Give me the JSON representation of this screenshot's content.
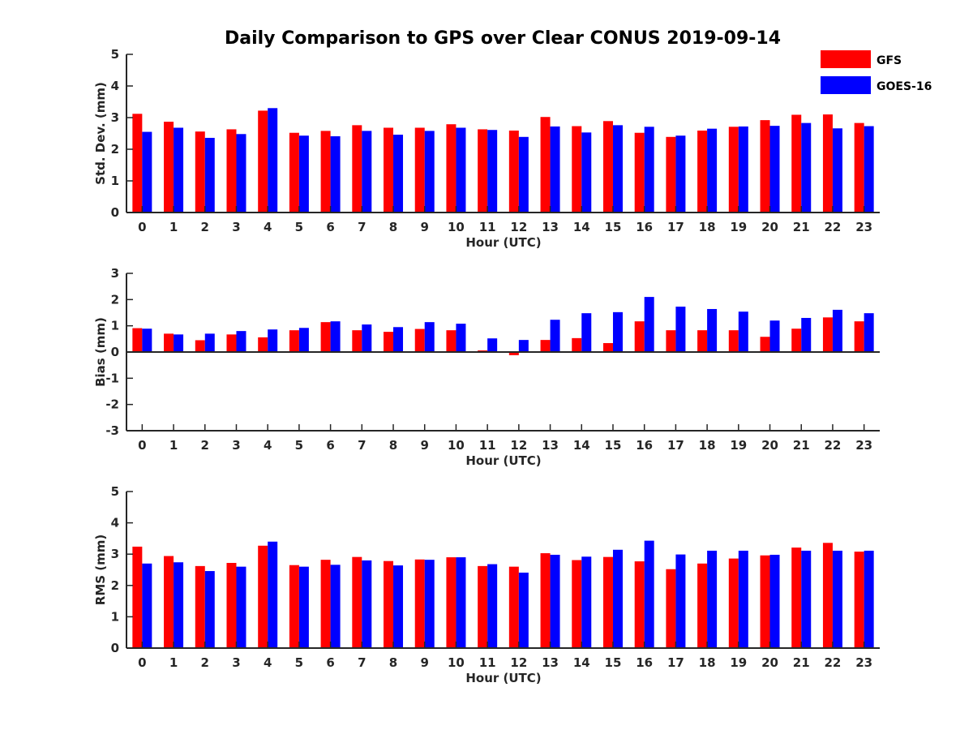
{
  "title": "Daily Comparison to GPS over Clear CONUS 2019-09-14",
  "legend": [
    {
      "label": "GFS",
      "color": "#ff0000"
    },
    {
      "label": "GOES-16",
      "color": "#0000ff"
    }
  ],
  "chart_data": [
    {
      "type": "bar",
      "title": "Daily Comparison to GPS over Clear CONUS 2019-09-14",
      "xlabel": "Hour (UTC)",
      "ylabel": "Std. Dev. (mm)",
      "ylim": [
        0,
        5
      ],
      "yticks": [
        "0",
        "1",
        "2",
        "3",
        "4",
        "5"
      ],
      "categories": [
        "0",
        "1",
        "2",
        "3",
        "4",
        "5",
        "6",
        "7",
        "8",
        "9",
        "10",
        "11",
        "12",
        "13",
        "14",
        "15",
        "16",
        "17",
        "18",
        "19",
        "20",
        "21",
        "22",
        "23"
      ],
      "series": [
        {
          "name": "GFS",
          "color": "#ff0000",
          "values": [
            3.12,
            2.87,
            2.56,
            2.63,
            3.22,
            2.52,
            2.58,
            2.76,
            2.68,
            2.68,
            2.79,
            2.63,
            2.59,
            3.02,
            2.73,
            2.89,
            2.52,
            2.39,
            2.59,
            2.71,
            2.92,
            3.09,
            3.1,
            2.83
          ]
        },
        {
          "name": "GOES-16",
          "color": "#0000ff",
          "values": [
            2.55,
            2.68,
            2.36,
            2.48,
            3.3,
            2.43,
            2.41,
            2.58,
            2.46,
            2.58,
            2.68,
            2.61,
            2.39,
            2.72,
            2.53,
            2.76,
            2.71,
            2.43,
            2.65,
            2.72,
            2.74,
            2.83,
            2.66,
            2.73
          ]
        }
      ]
    },
    {
      "type": "bar",
      "xlabel": "Hour (UTC)",
      "ylabel": "Bias (mm)",
      "ylim": [
        -3,
        3
      ],
      "yticks": [
        "-3",
        "-2",
        "-1",
        "0",
        "1",
        "2",
        "3"
      ],
      "categories": [
        "0",
        "1",
        "2",
        "3",
        "4",
        "5",
        "6",
        "7",
        "8",
        "9",
        "10",
        "11",
        "12",
        "13",
        "14",
        "15",
        "16",
        "17",
        "18",
        "19",
        "20",
        "21",
        "22",
        "23"
      ],
      "series": [
        {
          "name": "GFS",
          "color": "#ff0000",
          "values": [
            0.91,
            0.7,
            0.45,
            0.67,
            0.56,
            0.83,
            1.14,
            0.83,
            0.77,
            0.88,
            0.83,
            0.06,
            -0.12,
            0.46,
            0.53,
            0.34,
            1.17,
            0.83,
            0.83,
            0.83,
            0.58,
            0.89,
            1.32,
            1.17
          ]
        },
        {
          "name": "GOES-16",
          "color": "#0000ff",
          "values": [
            0.89,
            0.67,
            0.7,
            0.8,
            0.86,
            0.92,
            1.17,
            1.05,
            0.95,
            1.14,
            1.08,
            0.52,
            0.46,
            1.23,
            1.48,
            1.52,
            2.1,
            1.73,
            1.64,
            1.54,
            1.2,
            1.3,
            1.61,
            1.48
          ]
        }
      ]
    },
    {
      "type": "bar",
      "xlabel": "Hour (UTC)",
      "ylabel": "RMS (mm)",
      "ylim": [
        0,
        5
      ],
      "yticks": [
        "0",
        "1",
        "2",
        "3",
        "4",
        "5"
      ],
      "categories": [
        "0",
        "1",
        "2",
        "3",
        "4",
        "5",
        "6",
        "7",
        "8",
        "9",
        "10",
        "11",
        "12",
        "13",
        "14",
        "15",
        "16",
        "17",
        "18",
        "19",
        "20",
        "21",
        "22",
        "23"
      ],
      "series": [
        {
          "name": "GFS",
          "color": "#ff0000",
          "values": [
            3.24,
            2.94,
            2.62,
            2.72,
            3.27,
            2.65,
            2.82,
            2.91,
            2.78,
            2.83,
            2.9,
            2.62,
            2.6,
            3.03,
            2.81,
            2.91,
            2.77,
            2.52,
            2.7,
            2.86,
            2.96,
            3.21,
            3.36,
            3.08
          ]
        },
        {
          "name": "GOES-16",
          "color": "#0000ff",
          "values": [
            2.7,
            2.74,
            2.46,
            2.6,
            3.4,
            2.6,
            2.66,
            2.8,
            2.64,
            2.82,
            2.9,
            2.68,
            2.41,
            2.98,
            2.92,
            3.14,
            3.43,
            2.99,
            3.11,
            3.11,
            2.98,
            3.11,
            3.11,
            3.11
          ]
        }
      ]
    }
  ]
}
